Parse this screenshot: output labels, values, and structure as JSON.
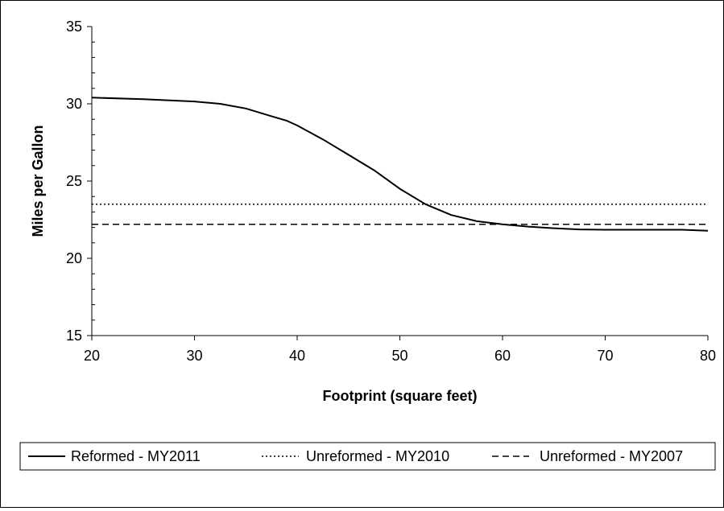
{
  "chart_data": {
    "type": "line",
    "title": "",
    "xlabel": "Footprint (square feet)",
    "ylabel": "Miles per Gallon",
    "xlim": [
      20,
      80
    ],
    "ylim": [
      15,
      35
    ],
    "x_ticks": [
      20,
      30,
      40,
      50,
      60,
      70,
      80
    ],
    "y_ticks": [
      15,
      20,
      25,
      30,
      35
    ],
    "x_tick_labels": [
      "20",
      "30",
      "40",
      "50",
      "60",
      "70",
      "80"
    ],
    "y_tick_labels": [
      "15",
      "20",
      "25",
      "30",
      "35"
    ],
    "grid": false,
    "legend_position": "bottom",
    "series": [
      {
        "name": "Reformed - MY2011",
        "style": "solid",
        "color": "#000000",
        "x": [
          20,
          25,
          30,
          32.5,
          35,
          37.5,
          39,
          40,
          42.5,
          45,
          47.5,
          50,
          52.5,
          55,
          57.5,
          60,
          62.5,
          65,
          67.5,
          70,
          72.5,
          75,
          77.5,
          80
        ],
        "y": [
          30.4,
          30.3,
          30.15,
          30.0,
          29.7,
          29.2,
          28.9,
          28.6,
          27.7,
          26.7,
          25.7,
          24.5,
          23.5,
          22.8,
          22.4,
          22.2,
          22.05,
          21.95,
          21.87,
          21.85,
          21.85,
          21.85,
          21.85,
          21.78
        ]
      },
      {
        "name": "Unreformed - MY2010",
        "style": "dotted",
        "color": "#000000",
        "x": [
          20,
          80
        ],
        "y": [
          23.5,
          23.5
        ]
      },
      {
        "name": "Unreformed - MY2007",
        "style": "dashed",
        "color": "#000000",
        "x": [
          20,
          80
        ],
        "y": [
          22.2,
          22.2
        ]
      }
    ]
  }
}
